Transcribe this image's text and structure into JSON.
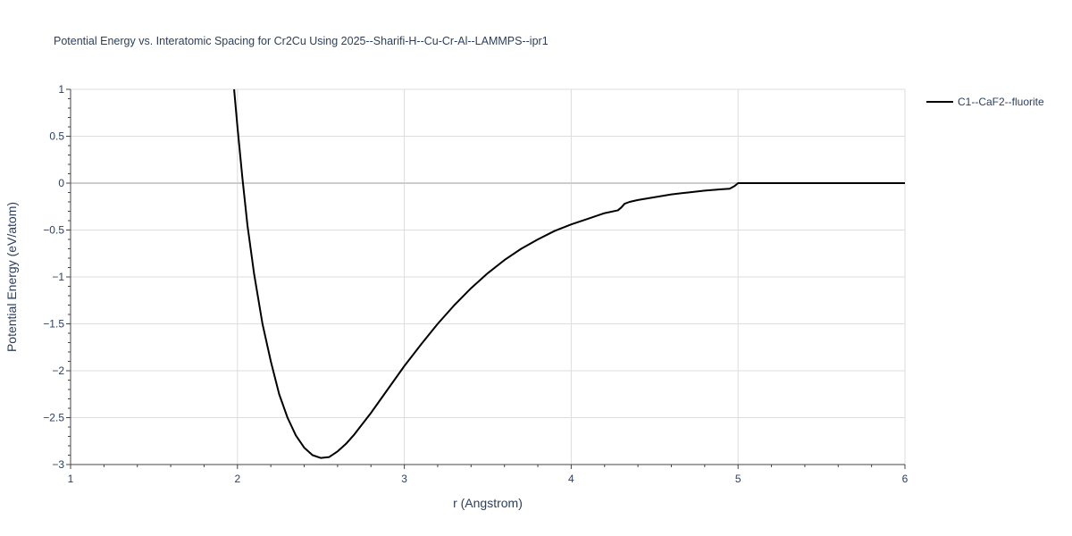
{
  "chart_data": {
    "type": "line",
    "title": "Potential Energy vs. Interatomic Spacing for Cr2Cu Using 2025--Sharifi-H--Cu-Cr-Al--LAMMPS--ipr1",
    "xlabel": "r (Angstrom)",
    "ylabel": "Potential Energy (eV/atom)",
    "xlim": [
      1,
      6
    ],
    "ylim": [
      -3,
      1
    ],
    "x_ticks": [
      1,
      2,
      3,
      4,
      5,
      6
    ],
    "x_tick_labels": [
      "1",
      "2",
      "3",
      "4",
      "5",
      "6"
    ],
    "y_ticks": [
      1,
      0.5,
      0,
      -0.5,
      -1,
      -1.5,
      -2,
      -2.5,
      -3
    ],
    "y_tick_labels": [
      "1",
      "0.5",
      "0",
      "−0.5",
      "−1",
      "−1.5",
      "−2",
      "−2.5",
      "−3"
    ],
    "grid": true,
    "legend_position": "top-right, outside plot",
    "series": [
      {
        "name": "C1--CaF2--fluorite",
        "color": "#000000",
        "x": [
          1.98,
          2.0,
          2.03,
          2.06,
          2.1,
          2.15,
          2.2,
          2.25,
          2.3,
          2.35,
          2.4,
          2.45,
          2.5,
          2.55,
          2.6,
          2.65,
          2.7,
          2.8,
          2.9,
          3.0,
          3.1,
          3.2,
          3.3,
          3.4,
          3.5,
          3.6,
          3.7,
          3.8,
          3.9,
          4.0,
          4.1,
          4.2,
          4.28,
          4.3,
          4.32,
          4.35,
          4.4,
          4.5,
          4.6,
          4.7,
          4.8,
          4.9,
          4.95,
          4.98,
          5.0,
          5.1,
          5.5,
          6.0
        ],
        "y": [
          1.0,
          0.6,
          0.05,
          -0.45,
          -0.97,
          -1.5,
          -1.9,
          -2.25,
          -2.5,
          -2.69,
          -2.82,
          -2.9,
          -2.93,
          -2.92,
          -2.86,
          -2.78,
          -2.68,
          -2.45,
          -2.2,
          -1.95,
          -1.72,
          -1.5,
          -1.3,
          -1.12,
          -0.96,
          -0.82,
          -0.7,
          -0.6,
          -0.51,
          -0.44,
          -0.38,
          -0.32,
          -0.29,
          -0.26,
          -0.22,
          -0.2,
          -0.18,
          -0.15,
          -0.12,
          -0.1,
          -0.08,
          -0.065,
          -0.06,
          -0.03,
          0.0,
          0.0,
          0.0,
          0.0
        ]
      }
    ]
  }
}
